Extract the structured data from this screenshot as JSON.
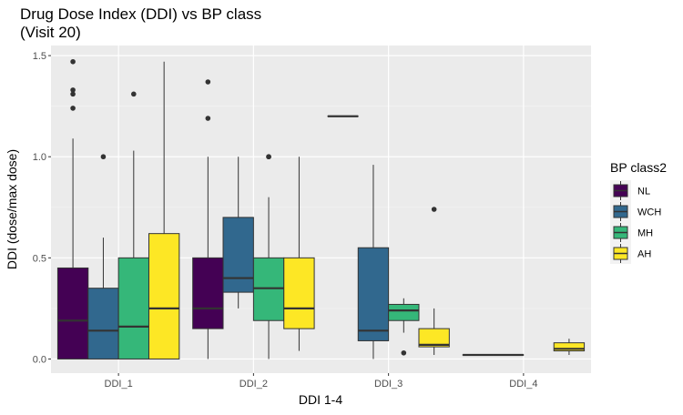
{
  "chart_data": {
    "type": "boxplot",
    "title_line1": "Drug Dose Index (DDI) vs BP class",
    "title_line2": "(Visit 20)",
    "xlabel": "DDI 1-4",
    "ylabel": "DDI (dose/max dose)",
    "ylim": [
      -0.07,
      1.55
    ],
    "yticks": [
      0.0,
      0.5,
      1.0,
      1.5
    ],
    "ytick_labels": [
      "0.0",
      "0.5",
      "1.0",
      "1.5"
    ],
    "categories": [
      "DDI_1",
      "DDI_2",
      "DDI_3",
      "DDI_4"
    ],
    "legend_title": "BP class2",
    "legend_position": "right",
    "grid": true,
    "series": [
      {
        "name": "NL",
        "color": "#440154",
        "boxes": [
          {
            "category": "DDI_1",
            "min": 0.0,
            "q1": 0.0,
            "median": 0.19,
            "q3": 0.45,
            "max": 1.09,
            "outliers": [
              1.24,
              1.31,
              1.33,
              1.47
            ]
          },
          {
            "category": "DDI_2",
            "min": 0.0,
            "q1": 0.15,
            "median": 0.25,
            "q3": 0.5,
            "max": 1.0,
            "outliers": [
              1.19,
              1.37
            ]
          },
          {
            "category": "DDI_3",
            "min": 1.2,
            "q1": 1.2,
            "median": 1.2,
            "q3": 1.2,
            "max": 1.2,
            "outliers": []
          },
          {
            "category": "DDI_4",
            "min": 0.02,
            "q1": 0.02,
            "median": 0.02,
            "q3": 0.02,
            "max": 0.02,
            "outliers": []
          }
        ]
      },
      {
        "name": "WCH",
        "color": "#31688E",
        "boxes": [
          {
            "category": "DDI_1",
            "min": 0.0,
            "q1": 0.0,
            "median": 0.14,
            "q3": 0.35,
            "max": 0.6,
            "outliers": [
              1.0
            ]
          },
          {
            "category": "DDI_2",
            "min": 0.25,
            "q1": 0.33,
            "median": 0.4,
            "q3": 0.7,
            "max": 1.0,
            "outliers": []
          },
          {
            "category": "DDI_3",
            "min": 0.0,
            "q1": 0.09,
            "median": 0.14,
            "q3": 0.55,
            "max": 0.96,
            "outliers": []
          },
          {
            "category": "DDI_4",
            "min": 0.02,
            "q1": 0.02,
            "median": 0.02,
            "q3": 0.02,
            "max": 0.02,
            "outliers": []
          }
        ]
      },
      {
        "name": "MH",
        "color": "#35B779",
        "boxes": [
          {
            "category": "DDI_1",
            "min": 0.0,
            "q1": 0.0,
            "median": 0.16,
            "q3": 0.5,
            "max": 1.03,
            "outliers": [
              1.31
            ]
          },
          {
            "category": "DDI_2",
            "min": 0.0,
            "q1": 0.19,
            "median": 0.35,
            "q3": 0.5,
            "max": 0.8,
            "outliers": [
              1.0,
              1.0
            ]
          },
          {
            "category": "DDI_3",
            "min": 0.13,
            "q1": 0.19,
            "median": 0.24,
            "q3": 0.27,
            "max": 0.3,
            "outliers": [
              0.03
            ]
          }
        ]
      },
      {
        "name": "AH",
        "color": "#FDE725",
        "boxes": [
          {
            "category": "DDI_1",
            "min": 0.0,
            "q1": 0.0,
            "median": 0.25,
            "q3": 0.62,
            "max": 1.47,
            "outliers": []
          },
          {
            "category": "DDI_2",
            "min": 0.04,
            "q1": 0.15,
            "median": 0.25,
            "q3": 0.5,
            "max": 1.0,
            "outliers": []
          },
          {
            "category": "DDI_3",
            "min": 0.02,
            "q1": 0.06,
            "median": 0.07,
            "q3": 0.15,
            "max": 0.25,
            "outliers": [
              0.74
            ]
          },
          {
            "category": "DDI_4",
            "min": 0.02,
            "q1": 0.04,
            "median": 0.05,
            "q3": 0.08,
            "max": 0.1,
            "outliers": []
          }
        ]
      }
    ]
  }
}
